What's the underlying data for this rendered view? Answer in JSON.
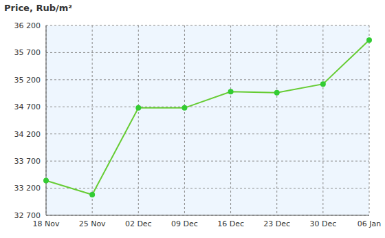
{
  "chart_data": {
    "type": "line",
    "title": "Price, Rub/m²",
    "categories": [
      "18 Nov",
      "25 Nov",
      "02 Dec",
      "09 Dec",
      "16 Dec",
      "23 Dec",
      "30 Dec",
      "06 Jan"
    ],
    "values": [
      33340,
      33080,
      34680,
      34680,
      34980,
      34960,
      35120,
      35930
    ],
    "color": "#66cc33",
    "marker": "circle",
    "ylim": [
      32700,
      36200
    ],
    "yticks": [
      {
        "value": 32700,
        "label": "32 700"
      },
      {
        "value": 33200,
        "label": "33 200"
      },
      {
        "value": 33700,
        "label": "33 700"
      },
      {
        "value": 34200,
        "label": "34 200"
      },
      {
        "value": 34700,
        "label": "34 700"
      },
      {
        "value": 35200,
        "label": "35 200"
      },
      {
        "value": 35700,
        "label": "35 700"
      },
      {
        "value": 36200,
        "label": "36 200"
      }
    ],
    "grid": true
  }
}
